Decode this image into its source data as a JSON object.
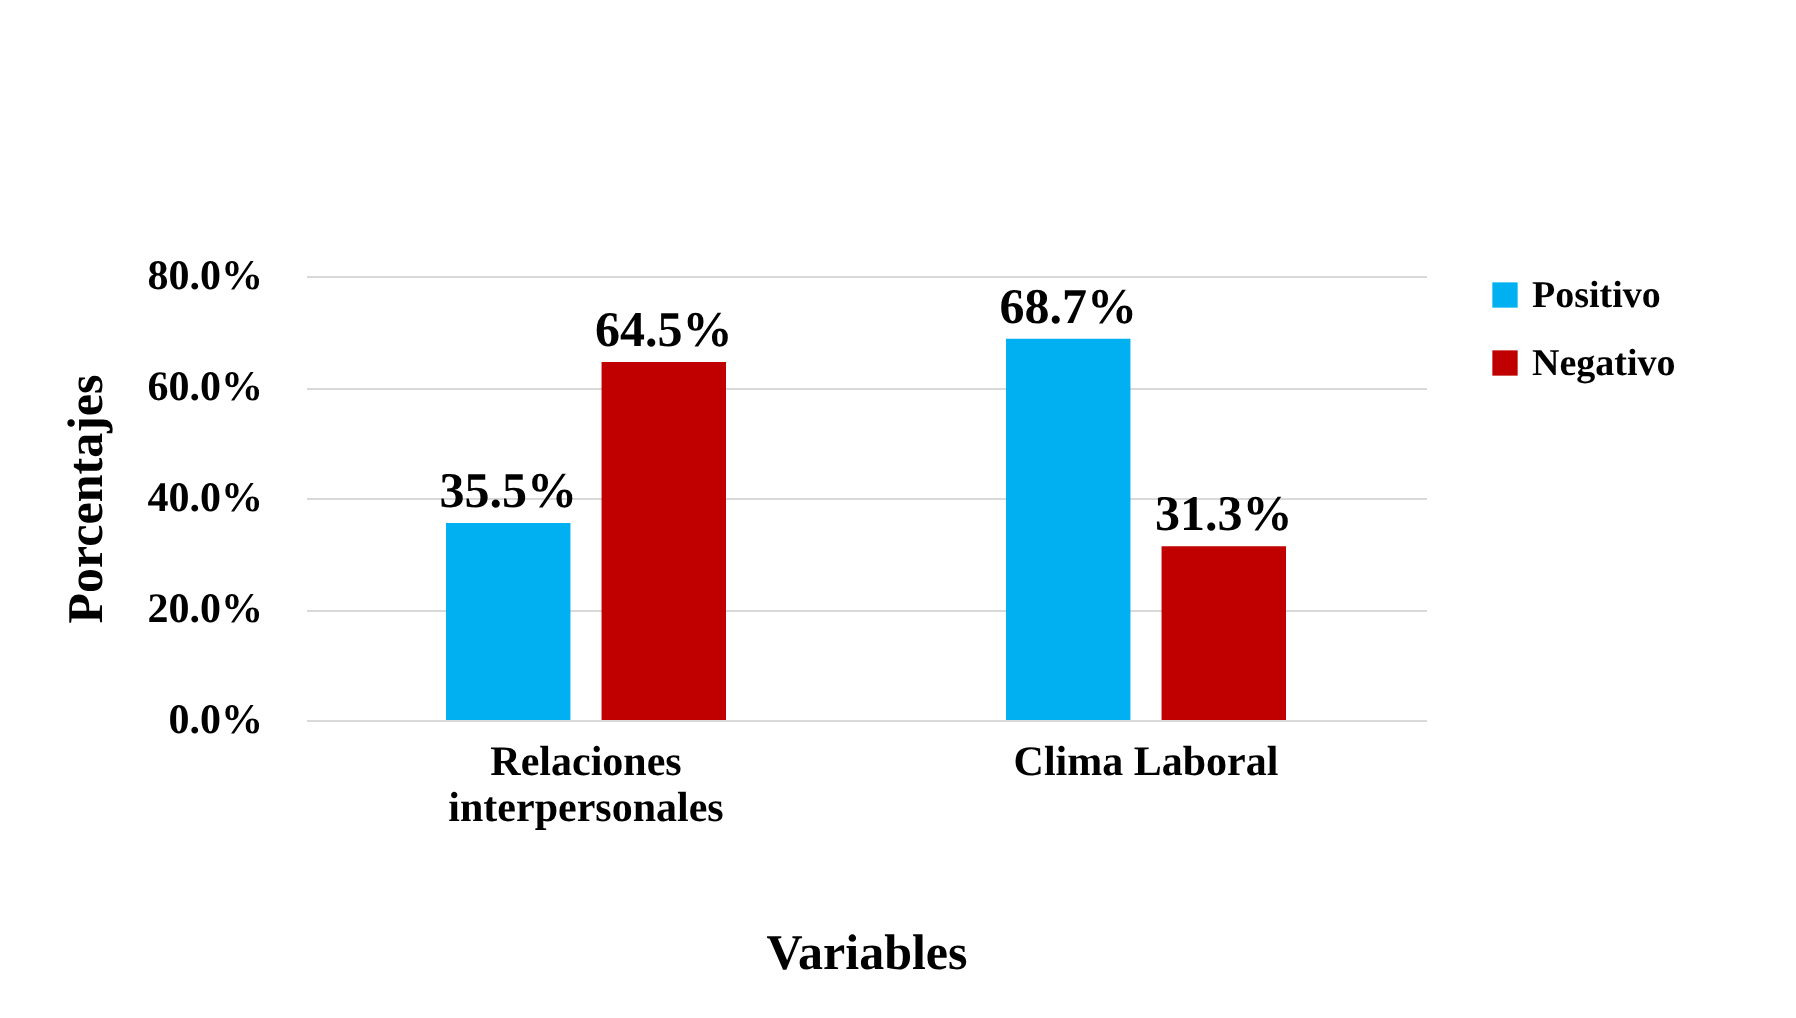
{
  "chart_data": {
    "type": "bar",
    "xlabel": "Variables",
    "ylabel": "Porcentajes",
    "categories": [
      "Relaciones interpersonales",
      "Clima Laboral"
    ],
    "series": [
      {
        "name": "Positivo",
        "color": "#00b0f0",
        "values": [
          35.5,
          68.7
        ],
        "value_labels": [
          "35.5%",
          "68.7%"
        ]
      },
      {
        "name": "Negativo",
        "color": "#c00000",
        "values": [
          64.5,
          31.3
        ],
        "value_labels": [
          "64.5%",
          "31.3%"
        ]
      }
    ],
    "ylim": [
      0,
      80
    ],
    "yticks": [
      {
        "value": 0,
        "label": "0.0%"
      },
      {
        "value": 20,
        "label": "20.0%"
      },
      {
        "value": 40,
        "label": "40.0%"
      },
      {
        "value": 60,
        "label": "60.0%"
      },
      {
        "value": 80,
        "label": "80.0%"
      }
    ],
    "grid": "y",
    "legend": "top right"
  }
}
